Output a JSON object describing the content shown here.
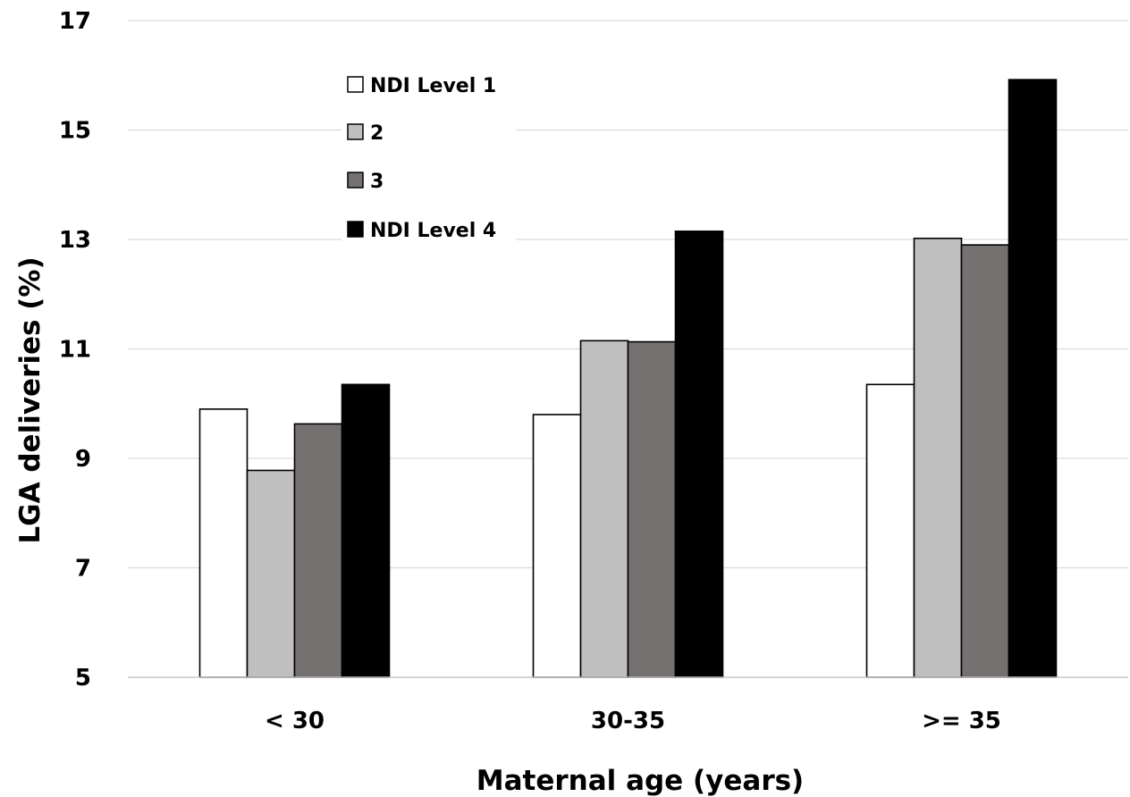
{
  "chart_data": {
    "type": "bar",
    "xlabel": "Maternal age (years)",
    "ylabel": "LGA deliveries (%)",
    "categories": [
      "< 30",
      "30-35",
      ">= 35"
    ],
    "ylim": [
      5,
      17
    ],
    "yticks": [
      5,
      7,
      9,
      11,
      13,
      15,
      17
    ],
    "grid": true,
    "legend_position": "top-left",
    "series": [
      {
        "name": "NDI Level 1",
        "color": "#ffffff",
        "values": [
          9.9,
          9.8,
          10.35
        ]
      },
      {
        "name": "2",
        "color": "#bfbfbf",
        "values": [
          8.78,
          11.15,
          13.02
        ]
      },
      {
        "name": "3",
        "color": "#767171",
        "values": [
          9.63,
          11.13,
          12.9
        ]
      },
      {
        "name": "NDI Level 4",
        "color": "#000000",
        "values": [
          10.35,
          13.15,
          15.92
        ]
      }
    ]
  }
}
